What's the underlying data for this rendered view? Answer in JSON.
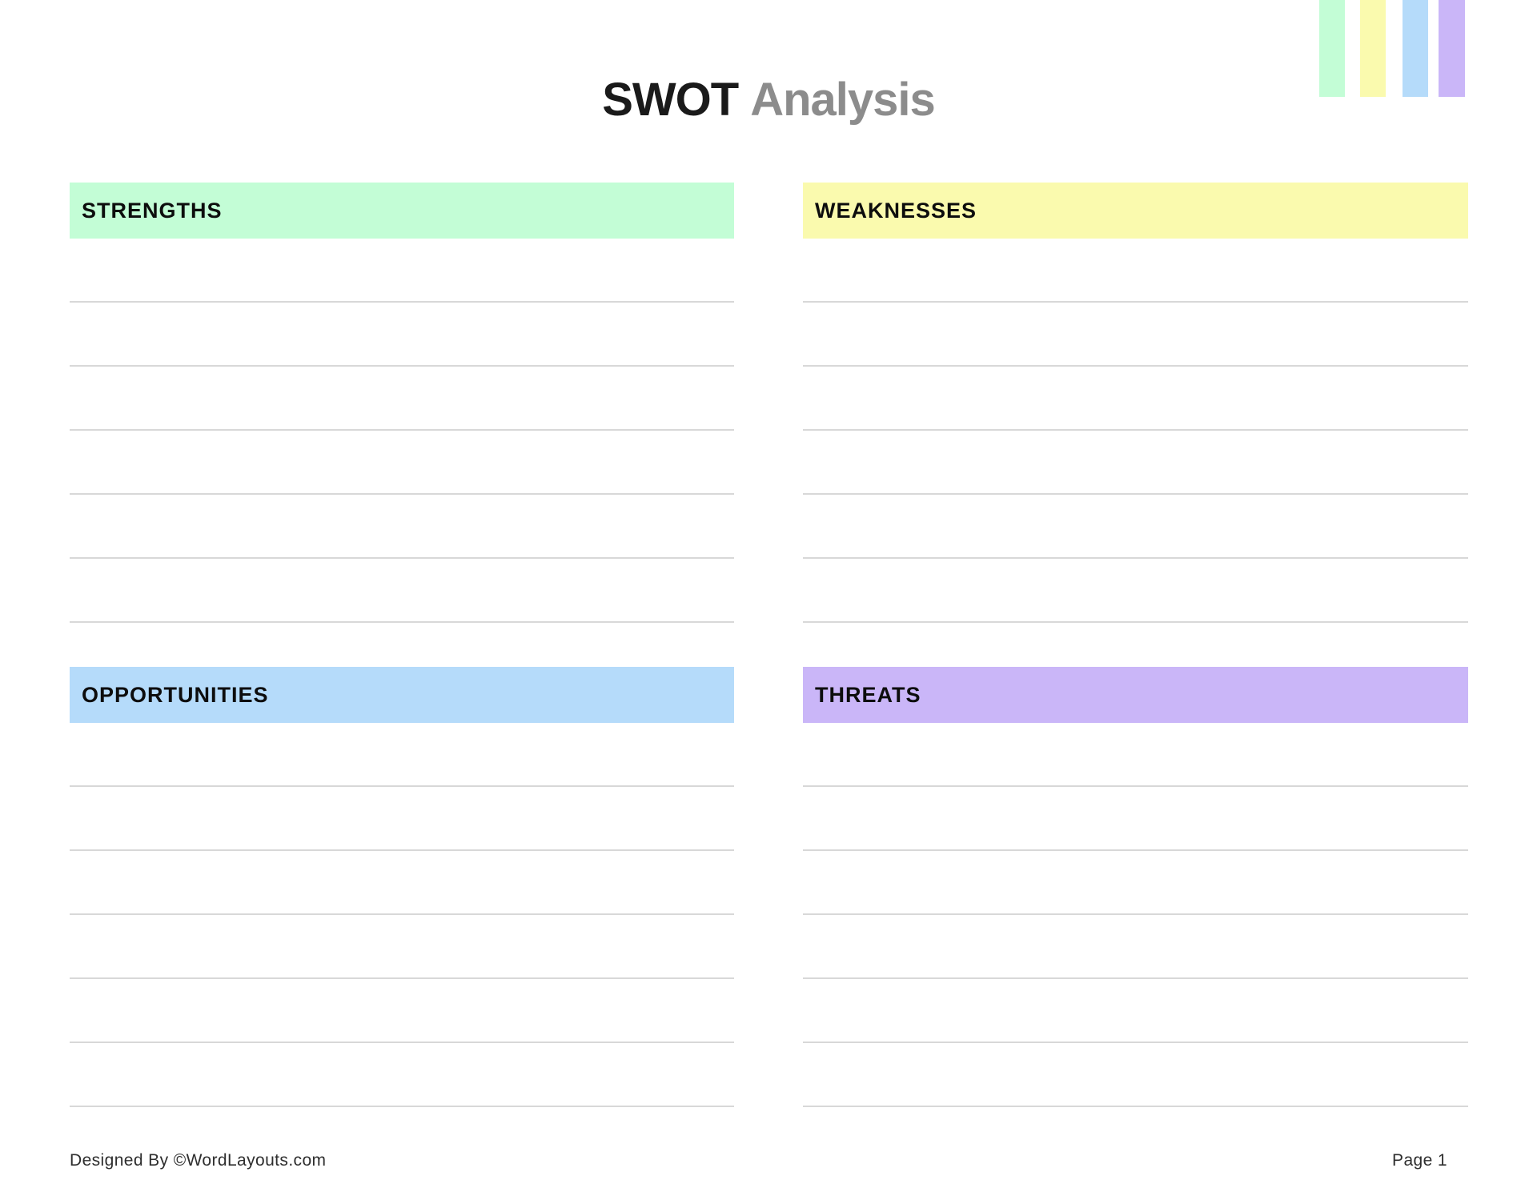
{
  "title": {
    "primary": "SWOT",
    "secondary": "Analysis"
  },
  "colors": {
    "strengths_green": "#C3FDD6",
    "weaknesses_yellow": "#FAFAAE",
    "opportunities_blue": "#B5DBFA",
    "threats_purple": "#CAB6F8",
    "rule_line": "#D8D8D8",
    "title_secondary_gray": "#8C8C8C"
  },
  "quadrants": [
    {
      "label": "STRENGTHS",
      "color": "#C3FDD6",
      "ruled_lines": 6
    },
    {
      "label": "WEAKNESSES",
      "color": "#FAFAAE",
      "ruled_lines": 6
    },
    {
      "label": "OPPORTUNITIES",
      "color": "#B5DBFA",
      "ruled_lines": 6
    },
    {
      "label": "THREATS",
      "color": "#CAB6F8",
      "ruled_lines": 6
    }
  ],
  "corner_stripes": [
    {
      "name": "green",
      "color": "#C3FDD6"
    },
    {
      "name": "yellow",
      "color": "#FAFAAE"
    },
    {
      "name": "blue",
      "color": "#B5DBFA"
    },
    {
      "name": "purple",
      "color": "#CAB6F8"
    }
  ],
  "footer": {
    "left": "Designed By ©WordLayouts.com",
    "right": "Page 1"
  }
}
